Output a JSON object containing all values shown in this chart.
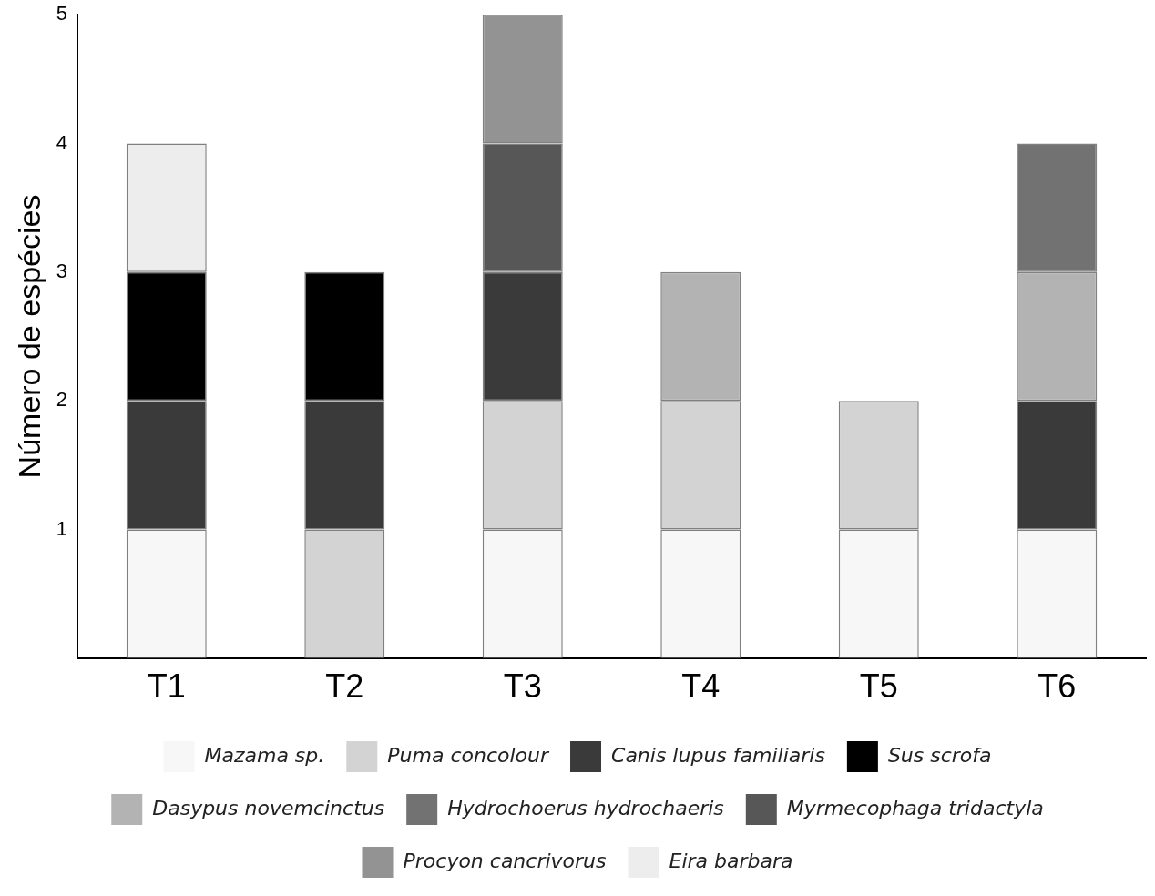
{
  "chart_data": {
    "type": "bar",
    "stacked": true,
    "ylabel": "Número de espécies",
    "categories": [
      "T1",
      "T2",
      "T3",
      "T4",
      "T5",
      "T6"
    ],
    "ylim": [
      0,
      5
    ],
    "yticks": [
      1,
      2,
      3,
      4,
      5
    ],
    "grid": false,
    "legend": "bottom",
    "series": [
      {
        "name": "Mazama sp.",
        "color": "#f7f7f7",
        "values": [
          1,
          0,
          1,
          1,
          1,
          1
        ]
      },
      {
        "name": "Puma concolour",
        "color": "#d3d3d3",
        "values": [
          0,
          1,
          1,
          1,
          1,
          0
        ]
      },
      {
        "name": "Canis lupus familiaris",
        "color": "#3a3a3a",
        "values": [
          1,
          1,
          1,
          0,
          0,
          1
        ]
      },
      {
        "name": "Sus scrofa",
        "color": "#000000",
        "values": [
          1,
          1,
          0,
          0,
          0,
          0
        ]
      },
      {
        "name": "Dasypus novemcinctus",
        "color": "#b3b3b3",
        "values": [
          0,
          0,
          0,
          1,
          0,
          1
        ]
      },
      {
        "name": "Hydrochoerus hydrochaeris",
        "color": "#727272",
        "values": [
          0,
          0,
          0,
          0,
          0,
          1
        ]
      },
      {
        "name": "Myrmecophaga tridactyla",
        "color": "#575757",
        "values": [
          0,
          0,
          1,
          0,
          0,
          0
        ]
      },
      {
        "name": "Procyon cancrivorus",
        "color": "#939393",
        "values": [
          0,
          0,
          1,
          0,
          0,
          0
        ]
      },
      {
        "name": "Eira barbara",
        "color": "#ededed",
        "values": [
          1,
          0,
          0,
          0,
          0,
          0
        ]
      }
    ]
  }
}
